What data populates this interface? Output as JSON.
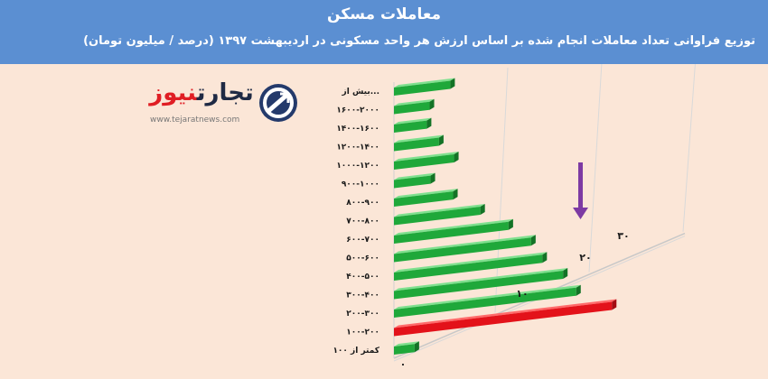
{
  "header": {
    "title": "معاملات مسکن",
    "subtitle": "توزیع فراوانی تعداد معاملات انجام شده بر اساس ارزش هر واحد مسکونی در اردیبهشت ۱۳۹۷ (درصد / میلیون تومان)"
  },
  "logo": {
    "name_part1": "تجارت",
    "name_part2": "نیوز",
    "url": "www.tejaratnews.com"
  },
  "colors": {
    "header_bg": "#5b8fd2",
    "page_bg": "#fbe6d7",
    "bar_green": "#1fa83a",
    "bar_red": "#e3121a",
    "arrow": "#7d3aa3"
  },
  "chart_data": {
    "type": "bar",
    "orientation": "horizontal",
    "categories": [
      "کمتر از ۱۰۰",
      "۱۰۰-۲۰۰",
      "۲۰۰-۳۰۰",
      "۳۰۰-۴۰۰",
      "۴۰۰-۵۰۰",
      "۵۰۰-۶۰۰",
      "۶۰۰-۷۰۰",
      "۷۰۰-۸۰۰",
      "۸۰۰-۹۰۰",
      "۹۰۰-۱۰۰۰",
      "۱۰۰۰-۱۲۰۰",
      "۱۲۰۰-۱۴۰۰",
      "۱۴۰۰-۱۶۰۰",
      "۱۶۰۰-۲۰۰۰",
      "بیش از..."
    ],
    "values": [
      2.2,
      23.2,
      19.4,
      18.0,
      15.8,
      14.6,
      12.2,
      9.2,
      6.3,
      3.9,
      6.4,
      4.8,
      3.5,
      3.8,
      6.0
    ],
    "highlight_category": "۱۰۰-۲۰۰",
    "x_ticks": [
      "۰",
      "۱۰",
      "۲۰",
      "۳۰"
    ],
    "x_tick_values": [
      0,
      10,
      20,
      30
    ],
    "xlim": [
      0,
      30
    ],
    "grid": true,
    "perspective": "3d"
  }
}
